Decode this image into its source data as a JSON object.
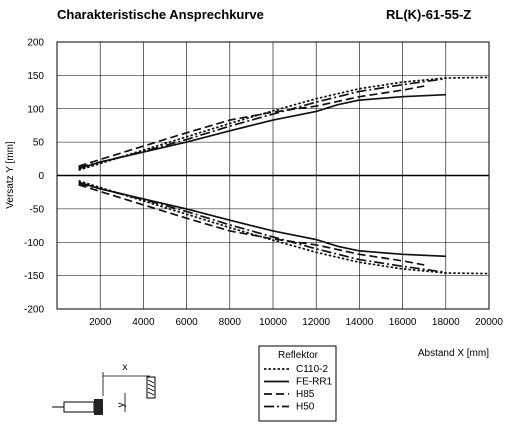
{
  "header": {
    "title": "Charakteristische Ansprechkurve",
    "model": "RL(K)-61-55-Z"
  },
  "chart_data": {
    "type": "line",
    "xlabel": "Abstand X [mm]",
    "ylabel": "Versatz Y [mm]",
    "xlim": [
      0,
      20000
    ],
    "ylim": [
      -200,
      200
    ],
    "x_ticks": [
      2000,
      4000,
      6000,
      8000,
      10000,
      12000,
      14000,
      16000,
      18000,
      20000
    ],
    "y_ticks": [
      200,
      150,
      100,
      50,
      0,
      -50,
      -100,
      -150,
      -200
    ],
    "grid": true,
    "legend": {
      "title": "Reflektor",
      "placement": "bottom-center"
    },
    "series": [
      {
        "name": "C110-2",
        "style": "dotted",
        "x": [
          1000,
          2000,
          4000,
          6000,
          8000,
          10000,
          12000,
          14000,
          16000,
          18000,
          20000
        ],
        "y": [
          8,
          18,
          38,
          58,
          78,
          97,
          115,
          130,
          140,
          146,
          147
        ],
        "y_lower": [
          -8,
          -18,
          -38,
          -58,
          -78,
          -97,
          -115,
          -130,
          -140,
          -146,
          -147
        ]
      },
      {
        "name": "FE-RR1",
        "style": "solid",
        "x": [
          1000,
          2000,
          4000,
          6000,
          8000,
          10000,
          12000,
          13000,
          14000,
          16000,
          18000
        ],
        "y": [
          10,
          20,
          35,
          50,
          67,
          83,
          96,
          106,
          113,
          118,
          121
        ],
        "y_lower": [
          -10,
          -20,
          -35,
          -50,
          -67,
          -83,
          -96,
          -106,
          -113,
          -118,
          -121
        ]
      },
      {
        "name": "H85",
        "style": "dashed",
        "x": [
          1000,
          2000,
          4000,
          6000,
          8000,
          10000,
          12000,
          14000,
          16000,
          17000
        ],
        "y": [
          14,
          24,
          44,
          64,
          83,
          95,
          104,
          118,
          128,
          134
        ],
        "y_lower": [
          -14,
          -24,
          -44,
          -64,
          -83,
          -95,
          -104,
          -118,
          -128,
          -134
        ]
      },
      {
        "name": "H50",
        "style": "dashdot",
        "x": [
          1000,
          2000,
          4000,
          6000,
          8000,
          10000,
          12000,
          14000,
          16000,
          18000
        ],
        "y": [
          12,
          20,
          36,
          54,
          74,
          92,
          110,
          126,
          136,
          145
        ],
        "y_lower": [
          -12,
          -20,
          -36,
          -54,
          -74,
          -92,
          -110,
          -126,
          -136,
          -145
        ]
      }
    ]
  },
  "diagram": {
    "x_label": "x",
    "y_label": "y"
  }
}
